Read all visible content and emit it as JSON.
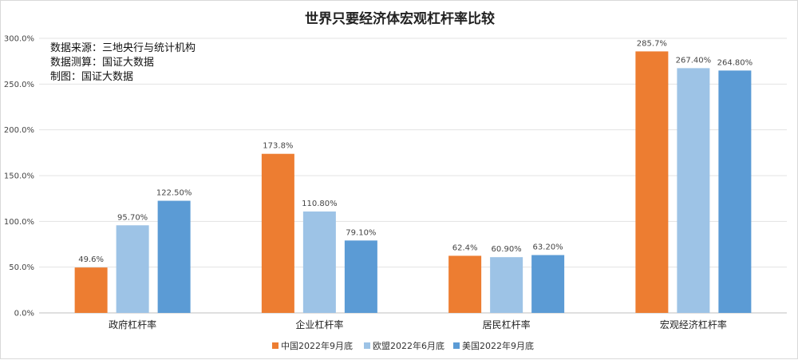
{
  "chart_data": {
    "type": "bar",
    "title": "世界只要经济体宏观杠杆率比较",
    "notes": [
      "数据来源：三地央行与统计机构",
      "数据测算：国证大数据",
      "制图：国证大数据"
    ],
    "categories": [
      "政府杠杆率",
      "企业杠杆率",
      "居民杠杆率",
      "宏观经济杠杆率"
    ],
    "ylim": [
      0,
      300
    ],
    "yticks": [
      0,
      50,
      100,
      150,
      200,
      250,
      300
    ],
    "ytick_labels": [
      "0.0%",
      "50.0%",
      "100.0%",
      "150.0%",
      "200.0%",
      "250.0%",
      "300.0%"
    ],
    "grid": true,
    "legend_position": "bottom",
    "series": [
      {
        "name": "中国2022年9月底",
        "color": "#ED7D31",
        "values": [
          49.6,
          173.8,
          62.4,
          285.7
        ],
        "labels": [
          "49.6%",
          "173.8%",
          "62.4%",
          "285.7%"
        ]
      },
      {
        "name": "欧盟2022年6月底",
        "color": "#9DC3E6",
        "values": [
          95.7,
          110.8,
          60.9,
          267.4
        ],
        "labels": [
          "95.70%",
          "110.80%",
          "60.90%",
          "267.40%"
        ]
      },
      {
        "name": "美国2022年9月底",
        "color": "#5B9BD5",
        "values": [
          122.5,
          79.1,
          63.2,
          264.8
        ],
        "labels": [
          "122.50%",
          "79.10%",
          "63.20%",
          "264.80%"
        ]
      }
    ]
  }
}
